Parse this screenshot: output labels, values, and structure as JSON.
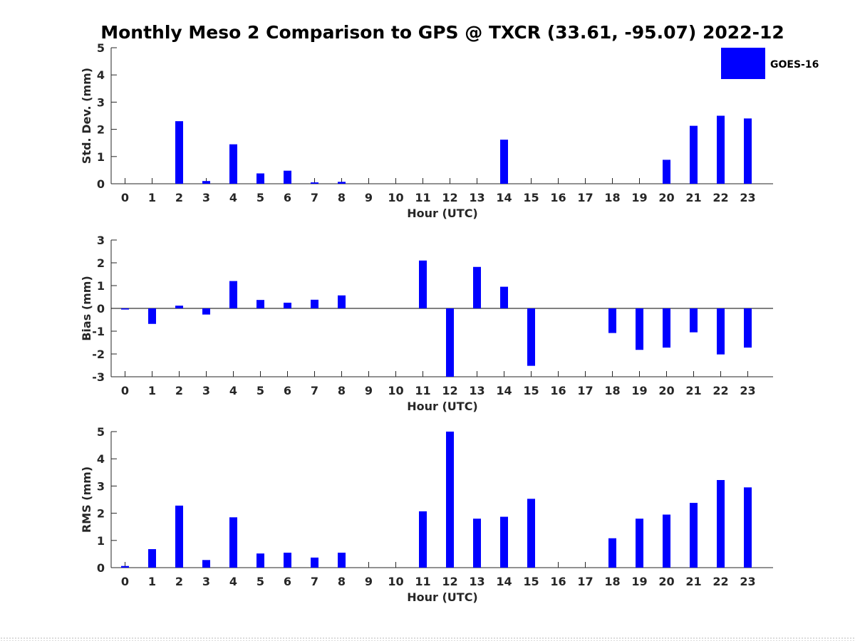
{
  "chart_data": [
    {
      "type": "bar",
      "title": "Monthly Meso 2 Comparison to GPS @ TXCR (33.61, -95.07) 2022-12",
      "xlabel": "Hour (UTC)",
      "ylabel": "Std. Dev. (mm)",
      "ylim": [
        0,
        5
      ],
      "yticks": [
        0,
        1,
        2,
        3,
        4,
        5
      ],
      "categories": [
        "0",
        "1",
        "2",
        "3",
        "4",
        "5",
        "6",
        "7",
        "8",
        "9",
        "10",
        "11",
        "12",
        "13",
        "14",
        "15",
        "16",
        "17",
        "18",
        "19",
        "20",
        "21",
        "22",
        "23"
      ],
      "series": [
        {
          "name": "GOES-16",
          "color": "#0000ff",
          "values": [
            null,
            null,
            2.3,
            0.1,
            1.45,
            0.38,
            0.48,
            0.05,
            0.07,
            null,
            null,
            null,
            null,
            null,
            1.62,
            null,
            null,
            null,
            null,
            null,
            0.88,
            2.13,
            2.5,
            2.4
          ]
        }
      ],
      "legend": {
        "entries": [
          "GOES-16"
        ],
        "position": "top-right"
      }
    },
    {
      "type": "bar",
      "xlabel": "Hour (UTC)",
      "ylabel": "Bias (mm)",
      "ylim": [
        -3,
        3
      ],
      "yticks": [
        -3,
        -2,
        -1,
        0,
        1,
        2,
        3
      ],
      "categories": [
        "0",
        "1",
        "2",
        "3",
        "4",
        "5",
        "6",
        "7",
        "8",
        "9",
        "10",
        "11",
        "12",
        "13",
        "14",
        "15",
        "16",
        "17",
        "18",
        "19",
        "20",
        "21",
        "22",
        "23"
      ],
      "series": [
        {
          "name": "GOES-16",
          "color": "#0000ff",
          "values": [
            -0.05,
            -0.68,
            0.12,
            -0.27,
            1.2,
            0.37,
            0.25,
            0.38,
            0.57,
            null,
            null,
            2.1,
            -3.0,
            1.82,
            0.95,
            -2.52,
            null,
            null,
            -1.08,
            -1.82,
            -1.72,
            -1.05,
            -2.02,
            -1.72
          ]
        }
      ]
    },
    {
      "type": "bar",
      "xlabel": "Hour (UTC)",
      "ylabel": "RMS (mm)",
      "ylim": [
        0,
        5
      ],
      "yticks": [
        0,
        1,
        2,
        3,
        4,
        5
      ],
      "categories": [
        "0",
        "1",
        "2",
        "3",
        "4",
        "5",
        "6",
        "7",
        "8",
        "9",
        "10",
        "11",
        "12",
        "13",
        "14",
        "15",
        "16",
        "17",
        "18",
        "19",
        "20",
        "21",
        "22",
        "23"
      ],
      "series": [
        {
          "name": "GOES-16",
          "color": "#0000ff",
          "values": [
            0.06,
            0.68,
            2.28,
            0.28,
            1.85,
            0.52,
            0.55,
            0.37,
            0.55,
            null,
            null,
            2.07,
            5.0,
            1.8,
            1.87,
            2.53,
            null,
            null,
            1.08,
            1.8,
            1.95,
            2.38,
            3.22,
            2.95
          ]
        }
      ]
    }
  ]
}
